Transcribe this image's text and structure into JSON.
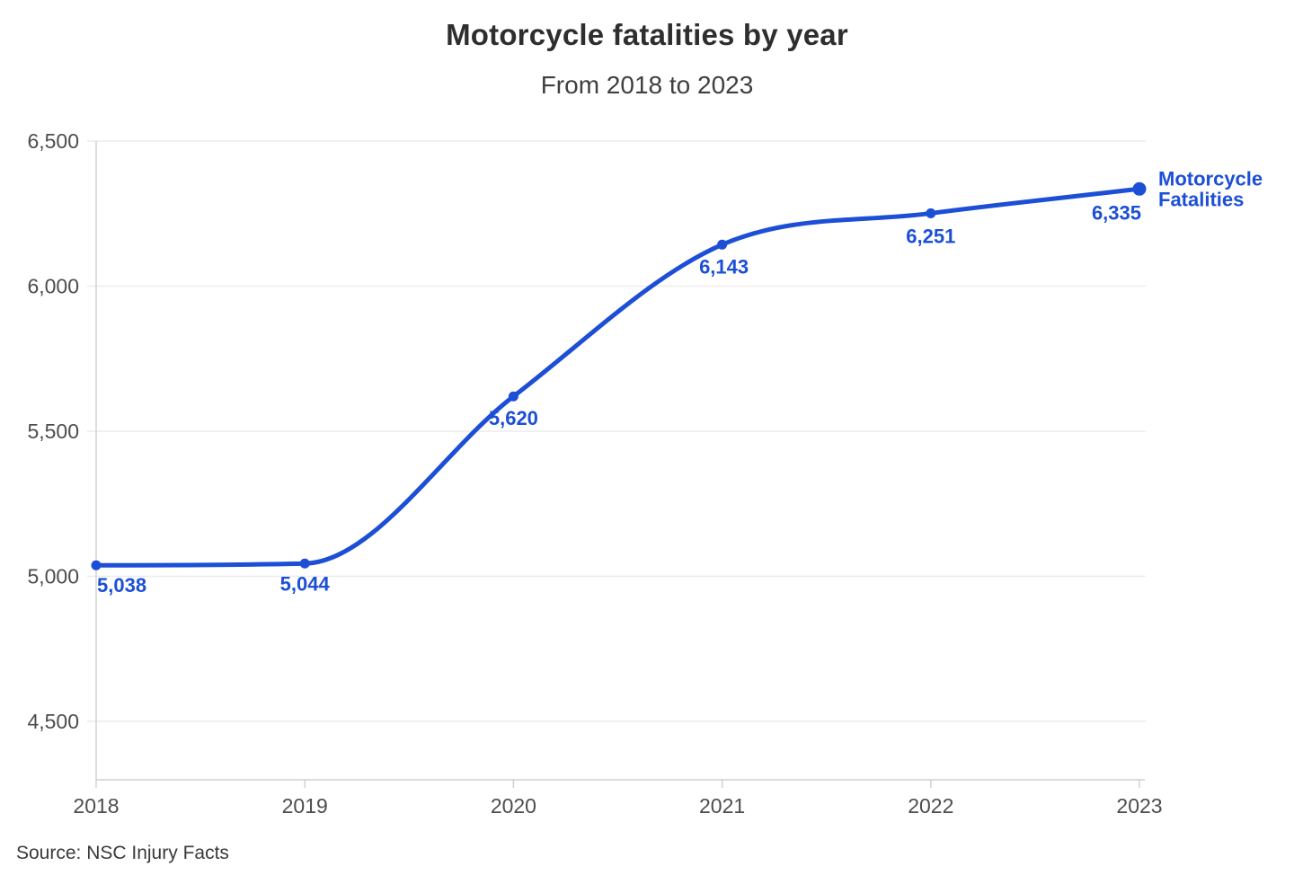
{
  "chart_data": {
    "type": "line",
    "title": "Motorcycle fatalities by year",
    "subtitle": "From 2018 to 2023",
    "source": "Source: NSC Injury Facts",
    "x": [
      2018,
      2019,
      2020,
      2021,
      2022,
      2023
    ],
    "x_tick_labels": [
      "2018",
      "2019",
      "2020",
      "2021",
      "2022",
      "2023"
    ],
    "y_ticks": [
      4500,
      5000,
      5500,
      6000,
      6500
    ],
    "y_tick_labels": [
      "4,500",
      "5,000",
      "5,500",
      "6,000",
      "6,500"
    ],
    "ylim": [
      4300,
      6500
    ],
    "grid": "horizontal",
    "legend_position": "right-of-last-point",
    "series": [
      {
        "name": "Motorcycle Fatalities",
        "legend_lines": [
          "Motorcycle",
          "Fatalities"
        ],
        "values": [
          5038,
          5044,
          5620,
          6143,
          6251,
          6335
        ],
        "point_labels": [
          "5,038",
          "5,044",
          "5,620",
          "6,143",
          "6,251",
          "6,335"
        ],
        "color": "#1c4fd6"
      }
    ],
    "colors": {
      "line": "#1c4fd6",
      "label_text": "#1c4fd6",
      "gridline": "#ececec",
      "axis_line": "#cfcfcf",
      "tick_label": "#4d4d4d"
    }
  }
}
